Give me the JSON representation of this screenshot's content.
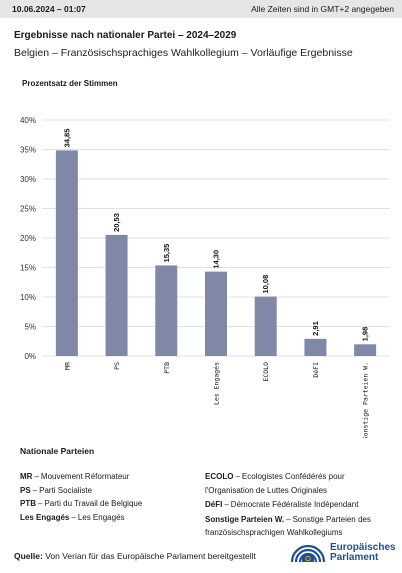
{
  "header": {
    "timestamp": "10.06.2024 – 01:07",
    "timezone_note": "Alle Zeiten sind in GMT+2 angegeben"
  },
  "title": "Ergebnisse nach nationaler Partei – 2024–2029",
  "subtitle": "Belgien – Französischsprachiges Wahlkollegium – Vorläufige Ergebnisse",
  "chart_data": {
    "type": "bar",
    "ylabel": "Prozentsatz der Stimmen",
    "xlabel": "",
    "ylim": [
      0,
      40
    ],
    "yticks": [
      0,
      5,
      10,
      15,
      20,
      25,
      30,
      35,
      40
    ],
    "ytick_labels": [
      "0%",
      "5%",
      "10%",
      "15%",
      "20%",
      "25%",
      "30%",
      "35%",
      "40%"
    ],
    "categories": [
      "MR",
      "PS",
      "PTB",
      "Les Engagés",
      "ECOLO",
      "DéFI",
      "Sonstige Parteien W."
    ],
    "values": [
      34.85,
      20.53,
      15.35,
      14.3,
      10.08,
      2.91,
      1.98
    ],
    "value_labels": [
      "34,85",
      "20,53",
      "15,35",
      "14,30",
      "10,08",
      "2,91",
      "1,98"
    ],
    "bar_color": "#8088a8",
    "grid": true
  },
  "legend": {
    "title": "Nationale Parteien",
    "left": [
      {
        "abbr": "MR",
        "name": "Mouvement Réformateur"
      },
      {
        "abbr": "PS",
        "name": "Parti Socialiste"
      },
      {
        "abbr": "PTB",
        "name": "Parti du Travail de Belgique"
      },
      {
        "abbr": "Les Engagés",
        "name": "Les Engagés"
      }
    ],
    "right": [
      {
        "abbr": "ECOLO",
        "name": "Ecologistes Confédérés pour l'Organisation de Luttes Originales"
      },
      {
        "abbr": "DéFI",
        "name": "Démocrate Fédéraliste Indépendant"
      },
      {
        "abbr": "Sonstige Parteien W.",
        "name": "Sonstige Parteien des französischsprachigen Wahlkollegiums"
      }
    ]
  },
  "source": {
    "label": "Quelle:",
    "text": "Von Verian für das Europäische Parlament bereitgestellt"
  },
  "logo": {
    "line1": "Europäisches",
    "line2": "Parlament",
    "icon": "european-parliament-hemicycle-icon",
    "color": "#1f4f9a"
  }
}
